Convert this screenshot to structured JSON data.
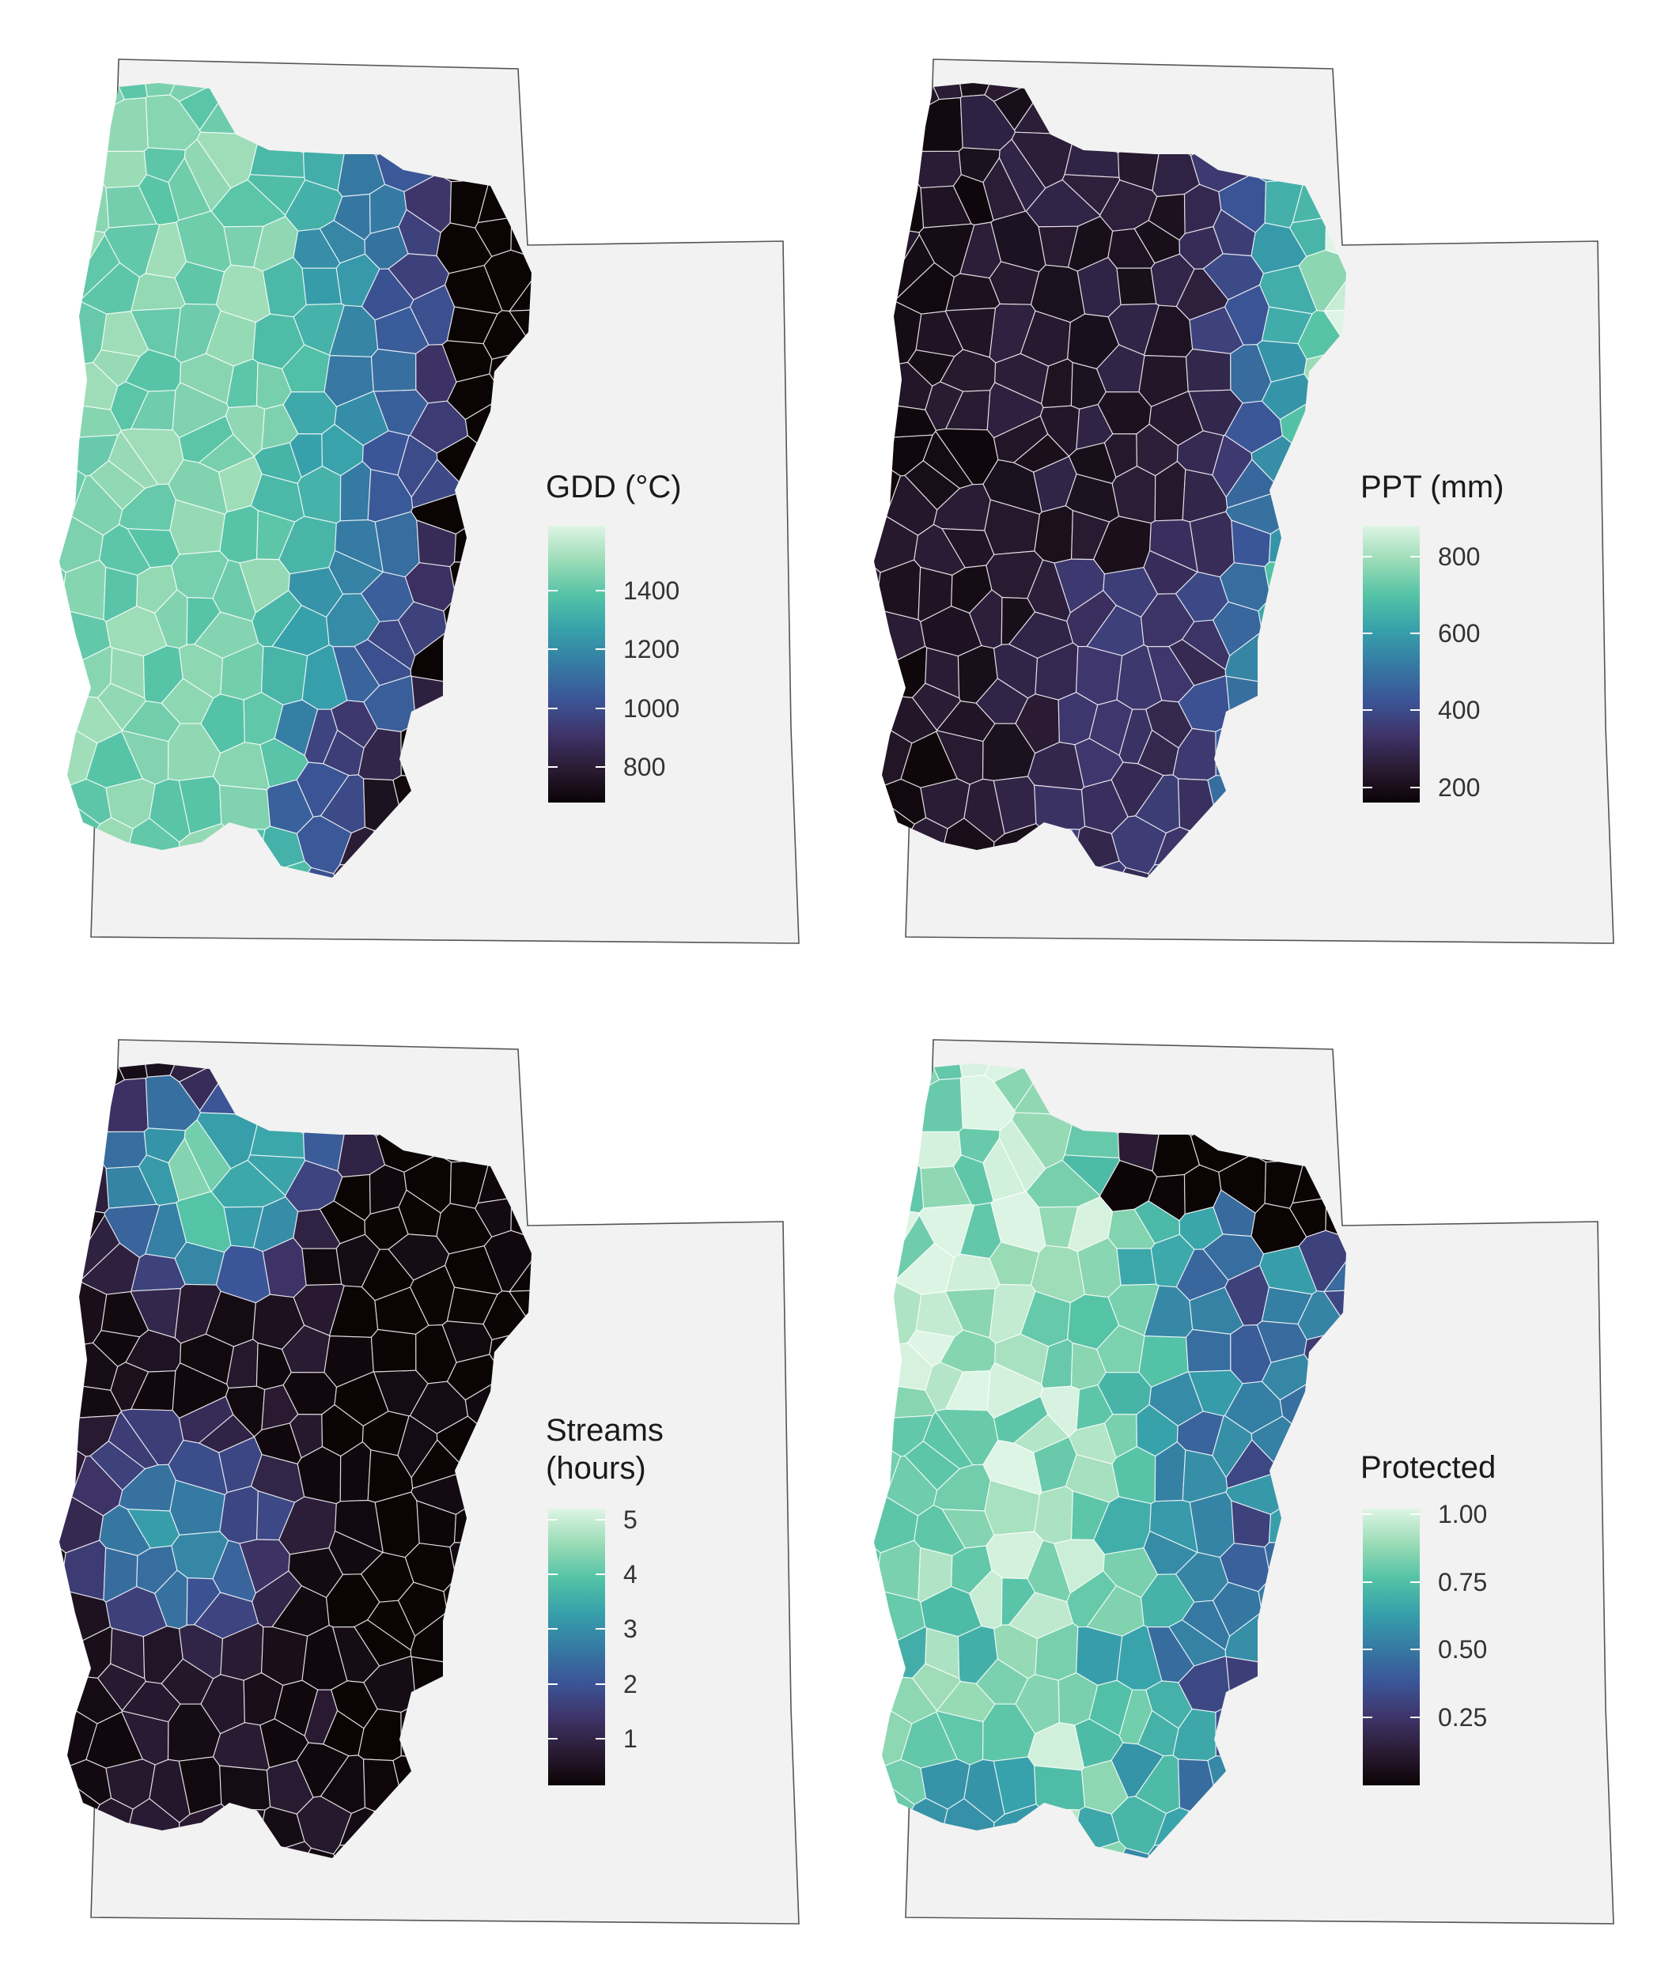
{
  "colors": {
    "background": "#ffffff",
    "state_fill": "#f2f2f2",
    "state_stroke": "#555555",
    "boundary_stroke": "#ffffff",
    "palette_mako": [
      "#0b0405",
      "#2b1c35",
      "#3e356b",
      "#3b5698",
      "#357ba3",
      "#37a1ab",
      "#55c3a6",
      "#9bdcb6",
      "#def5e5"
    ]
  },
  "maps": [
    {
      "id": "gdd",
      "legend_title": "GDD (°C)",
      "legend_ticks": [
        {
          "label": "1400",
          "value": 1400
        },
        {
          "label": "1200",
          "value": 1200
        },
        {
          "label": "1000",
          "value": 1000
        },
        {
          "label": "800",
          "value": 800
        }
      ],
      "range": [
        680,
        1620
      ]
    },
    {
      "id": "ppt",
      "legend_title": "PPT (mm)",
      "legend_ticks": [
        {
          "label": "800",
          "value": 800
        },
        {
          "label": "600",
          "value": 600
        },
        {
          "label": "400",
          "value": 400
        },
        {
          "label": "200",
          "value": 200
        }
      ],
      "range": [
        160,
        880
      ]
    },
    {
      "id": "streams",
      "legend_title": "Streams\n(hours)",
      "legend_ticks": [
        {
          "label": "5",
          "value": 5
        },
        {
          "label": "4",
          "value": 4
        },
        {
          "label": "3",
          "value": 3
        },
        {
          "label": "2",
          "value": 2
        },
        {
          "label": "1",
          "value": 1
        }
      ],
      "range": [
        0.15,
        5.2
      ]
    },
    {
      "id": "protected",
      "legend_title": "Protected",
      "legend_ticks": [
        {
          "label": "1.00",
          "value": 1.0
        },
        {
          "label": "0.75",
          "value": 0.75
        },
        {
          "label": "0.50",
          "value": 0.5
        },
        {
          "label": "0.25",
          "value": 0.25
        }
      ],
      "range": [
        0.0,
        1.02
      ]
    }
  ]
}
